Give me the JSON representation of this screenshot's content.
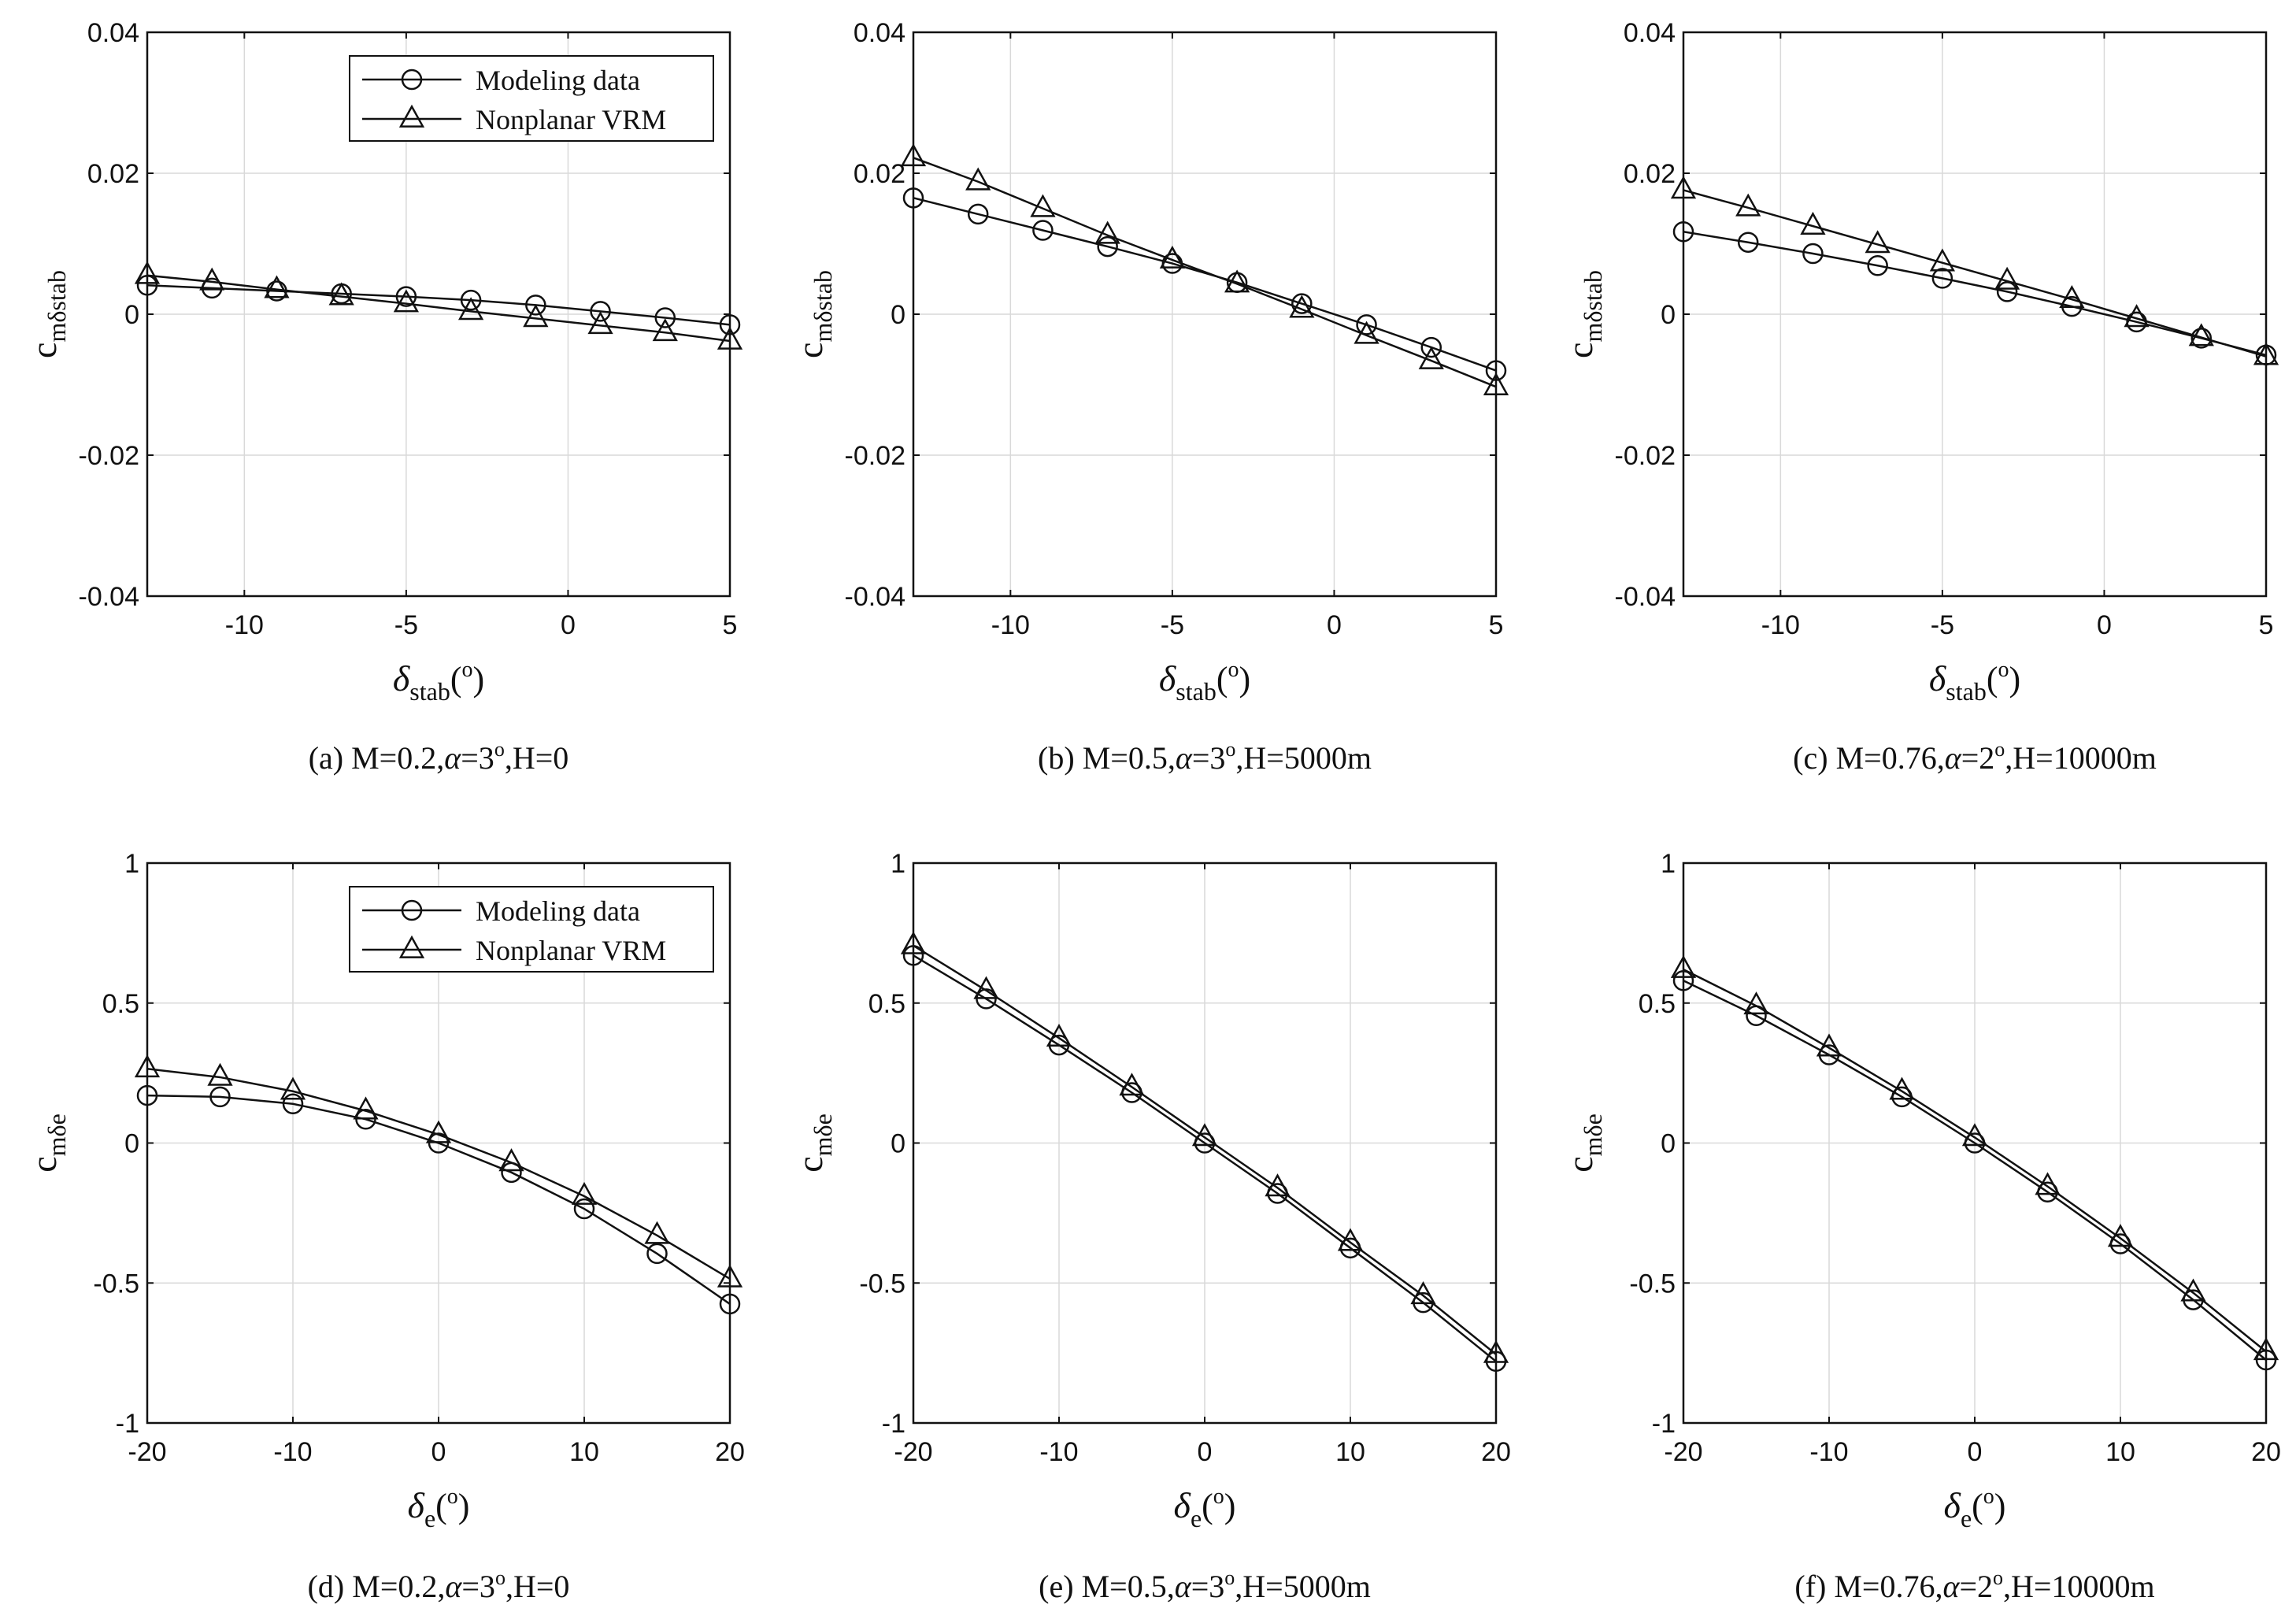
{
  "colors": {
    "line": "#111111",
    "grid": "#d9d9d9",
    "background": "#ffffff"
  },
  "legend": {
    "entries": [
      "Modeling data",
      "Nonplanar VRM"
    ]
  },
  "chart_data": [
    {
      "type": "line",
      "panel": "a",
      "caption": {
        "pre": "(a) M=0.2,",
        "alpha": "α",
        "mid": "=3",
        "deg": "o",
        "post": ",H=0"
      },
      "ylabel": {
        "main": "c",
        "sub": "mδstab"
      },
      "xlabel": {
        "main": "δ",
        "sub": "stab",
        "unit_open": "(",
        "unit_deg": "o",
        "unit_close": ")"
      },
      "xlim": [
        -13,
        5
      ],
      "ylim": [
        -0.04,
        0.04
      ],
      "xticks": [
        -10,
        -5,
        0,
        5
      ],
      "xtick_labels": [
        "-10",
        "-5",
        "0",
        "5"
      ],
      "yticks": [
        -0.04,
        -0.02,
        0,
        0.02,
        0.04
      ],
      "ytick_labels": [
        "-0.04",
        "-0.02",
        "0",
        "0.02",
        "0.04"
      ],
      "grid": true,
      "legend": true,
      "legend_position": "top-right",
      "x": [
        -13,
        -11,
        -9,
        -7,
        -5,
        -3,
        -1,
        1,
        3,
        5
      ],
      "series": [
        {
          "name": "Modeling data",
          "marker": "circle",
          "values": [
            0.0041,
            0.0037,
            0.0033,
            0.0029,
            0.0025,
            0.002,
            0.0013,
            0.0004,
            -0.0005,
            -0.0015
          ]
        },
        {
          "name": "Nonplanar VRM",
          "marker": "triangle",
          "values": [
            0.0055,
            0.0046,
            0.0035,
            0.0025,
            0.0015,
            0.0004,
            -0.0006,
            -0.0016,
            -0.0026,
            -0.0038
          ]
        }
      ]
    },
    {
      "type": "line",
      "panel": "b",
      "caption": {
        "pre": "(b) M=0.5,",
        "alpha": "α",
        "mid": "=3",
        "deg": "o",
        "post": ",H=5000m"
      },
      "ylabel": {
        "main": "c",
        "sub": "mδstab"
      },
      "xlabel": {
        "main": "δ",
        "sub": "stab",
        "unit_open": "(",
        "unit_deg": "o",
        "unit_close": ")"
      },
      "xlim": [
        -13,
        5
      ],
      "ylim": [
        -0.04,
        0.04
      ],
      "xticks": [
        -10,
        -5,
        0,
        5
      ],
      "xtick_labels": [
        "-10",
        "-5",
        "0",
        "5"
      ],
      "yticks": [
        -0.04,
        -0.02,
        0,
        0.02,
        0.04
      ],
      "ytick_labels": [
        "-0.04",
        "-0.02",
        "0",
        "0.02",
        "0.04"
      ],
      "grid": true,
      "legend": false,
      "x": [
        -13,
        -11,
        -9,
        -7,
        -5,
        -3,
        -1,
        1,
        3,
        5
      ],
      "series": [
        {
          "name": "Modeling data",
          "marker": "circle",
          "values": [
            0.0165,
            0.0142,
            0.0119,
            0.0096,
            0.0072,
            0.0045,
            0.0015,
            -0.0015,
            -0.0047,
            -0.008
          ]
        },
        {
          "name": "Nonplanar VRM",
          "marker": "triangle",
          "values": [
            0.0222,
            0.0188,
            0.015,
            0.0112,
            0.0077,
            0.0043,
            0.0007,
            -0.003,
            -0.0066,
            -0.0103
          ]
        }
      ]
    },
    {
      "type": "line",
      "panel": "c",
      "caption": {
        "pre": "(c) M=0.76,",
        "alpha": "α",
        "mid": "=2",
        "deg": "o",
        "post": ",H=10000m"
      },
      "ylabel": {
        "main": "c",
        "sub": "mδstab"
      },
      "xlabel": {
        "main": "δ",
        "sub": "stab",
        "unit_open": "(",
        "unit_deg": "o",
        "unit_close": ")"
      },
      "xlim": [
        -13,
        5
      ],
      "ylim": [
        -0.04,
        0.04
      ],
      "xticks": [
        -10,
        -5,
        0,
        5
      ],
      "xtick_labels": [
        "-10",
        "-5",
        "0",
        "5"
      ],
      "yticks": [
        -0.04,
        -0.02,
        0,
        0.02,
        0.04
      ],
      "ytick_labels": [
        "-0.04",
        "-0.02",
        "0",
        "0.02",
        "0.04"
      ],
      "grid": true,
      "legend": false,
      "x": [
        -13,
        -11,
        -9,
        -7,
        -5,
        -3,
        -1,
        1,
        3,
        5
      ],
      "series": [
        {
          "name": "Modeling data",
          "marker": "circle",
          "values": [
            0.0117,
            0.0102,
            0.0086,
            0.0069,
            0.0051,
            0.0032,
            0.0011,
            -0.0011,
            -0.0034,
            -0.0058
          ]
        },
        {
          "name": "Nonplanar VRM",
          "marker": "triangle",
          "values": [
            0.0176,
            0.0151,
            0.0125,
            0.0099,
            0.0073,
            0.0047,
            0.0021,
            -0.0006,
            -0.0033,
            -0.006
          ]
        }
      ]
    },
    {
      "type": "line",
      "panel": "d",
      "caption": {
        "pre": "(d) M=0.2,",
        "alpha": "α",
        "mid": "=3",
        "deg": "o",
        "post": ",H=0"
      },
      "ylabel": {
        "main": "c",
        "sub": "mδe"
      },
      "xlabel": {
        "main": "δ",
        "sub": "e",
        "unit_open": "(",
        "unit_deg": "o",
        "unit_close": ")"
      },
      "xlim": [
        -20,
        20
      ],
      "ylim": [
        -1,
        1
      ],
      "xticks": [
        -20,
        -10,
        0,
        10,
        20
      ],
      "xtick_labels": [
        "-20",
        "-10",
        "0",
        "10",
        "20"
      ],
      "yticks": [
        -1,
        -0.5,
        0,
        0.5,
        1
      ],
      "ytick_labels": [
        "-1",
        "-0.5",
        "0",
        "0.5",
        "1"
      ],
      "grid": true,
      "legend": true,
      "legend_position": "top-right",
      "x": [
        -20,
        -15,
        -10,
        -5,
        0,
        5,
        10,
        15,
        20
      ],
      "series": [
        {
          "name": "Modeling data",
          "marker": "circle",
          "values": [
            0.17,
            0.165,
            0.14,
            0.085,
            0.0,
            -0.105,
            -0.235,
            -0.395,
            -0.575
          ]
        },
        {
          "name": "Nonplanar VRM",
          "marker": "triangle",
          "values": [
            0.265,
            0.235,
            0.185,
            0.115,
            0.03,
            -0.07,
            -0.19,
            -0.33,
            -0.485
          ]
        }
      ]
    },
    {
      "type": "line",
      "panel": "e",
      "caption": {
        "pre": "(e) M=0.5,",
        "alpha": "α",
        "mid": "=3",
        "deg": "o",
        "post": ",H=5000m"
      },
      "ylabel": {
        "main": "c",
        "sub": "mδe"
      },
      "xlabel": {
        "main": "δ",
        "sub": "e",
        "unit_open": "(",
        "unit_deg": "o",
        "unit_close": ")"
      },
      "xlim": [
        -20,
        20
      ],
      "ylim": [
        -1,
        1
      ],
      "xticks": [
        -20,
        -10,
        0,
        10,
        20
      ],
      "xtick_labels": [
        "-20",
        "-10",
        "0",
        "10",
        "20"
      ],
      "yticks": [
        -1,
        -0.5,
        0,
        0.5,
        1
      ],
      "ytick_labels": [
        "-1",
        "-0.5",
        "0",
        "0.5",
        "1"
      ],
      "grid": true,
      "legend": false,
      "x": [
        -20,
        -15,
        -10,
        -5,
        0,
        5,
        10,
        15,
        20
      ],
      "series": [
        {
          "name": "Modeling data",
          "marker": "circle",
          "values": [
            0.67,
            0.515,
            0.35,
            0.18,
            0.0,
            -0.18,
            -0.375,
            -0.57,
            -0.78
          ]
        },
        {
          "name": "Nonplanar VRM",
          "marker": "triangle",
          "values": [
            0.705,
            0.545,
            0.375,
            0.2,
            0.02,
            -0.16,
            -0.355,
            -0.545,
            -0.755
          ]
        }
      ]
    },
    {
      "type": "line",
      "panel": "f",
      "caption": {
        "pre": "(f) M=0.76,",
        "alpha": "α",
        "mid": "=2",
        "deg": "o",
        "post": ",H=10000m"
      },
      "ylabel": {
        "main": "c",
        "sub": "mδe"
      },
      "xlabel": {
        "main": "δ",
        "sub": "e",
        "unit_open": "(",
        "unit_deg": "o",
        "unit_close": ")"
      },
      "xlim": [
        -20,
        20
      ],
      "ylim": [
        -1,
        1
      ],
      "xticks": [
        -20,
        -10,
        0,
        10,
        20
      ],
      "xtick_labels": [
        "-20",
        "-10",
        "0",
        "10",
        "20"
      ],
      "yticks": [
        -1,
        -0.5,
        0,
        0.5,
        1
      ],
      "ytick_labels": [
        "-1",
        "-0.5",
        "0",
        "0.5",
        "1"
      ],
      "grid": true,
      "legend": false,
      "x": [
        -20,
        -15,
        -10,
        -5,
        0,
        5,
        10,
        15,
        20
      ],
      "series": [
        {
          "name": "Modeling data",
          "marker": "circle",
          "values": [
            0.58,
            0.455,
            0.315,
            0.165,
            0.0,
            -0.175,
            -0.36,
            -0.56,
            -0.775
          ]
        },
        {
          "name": "Nonplanar VRM",
          "marker": "triangle",
          "values": [
            0.62,
            0.49,
            0.34,
            0.185,
            0.02,
            -0.155,
            -0.34,
            -0.535,
            -0.745
          ]
        }
      ]
    }
  ]
}
